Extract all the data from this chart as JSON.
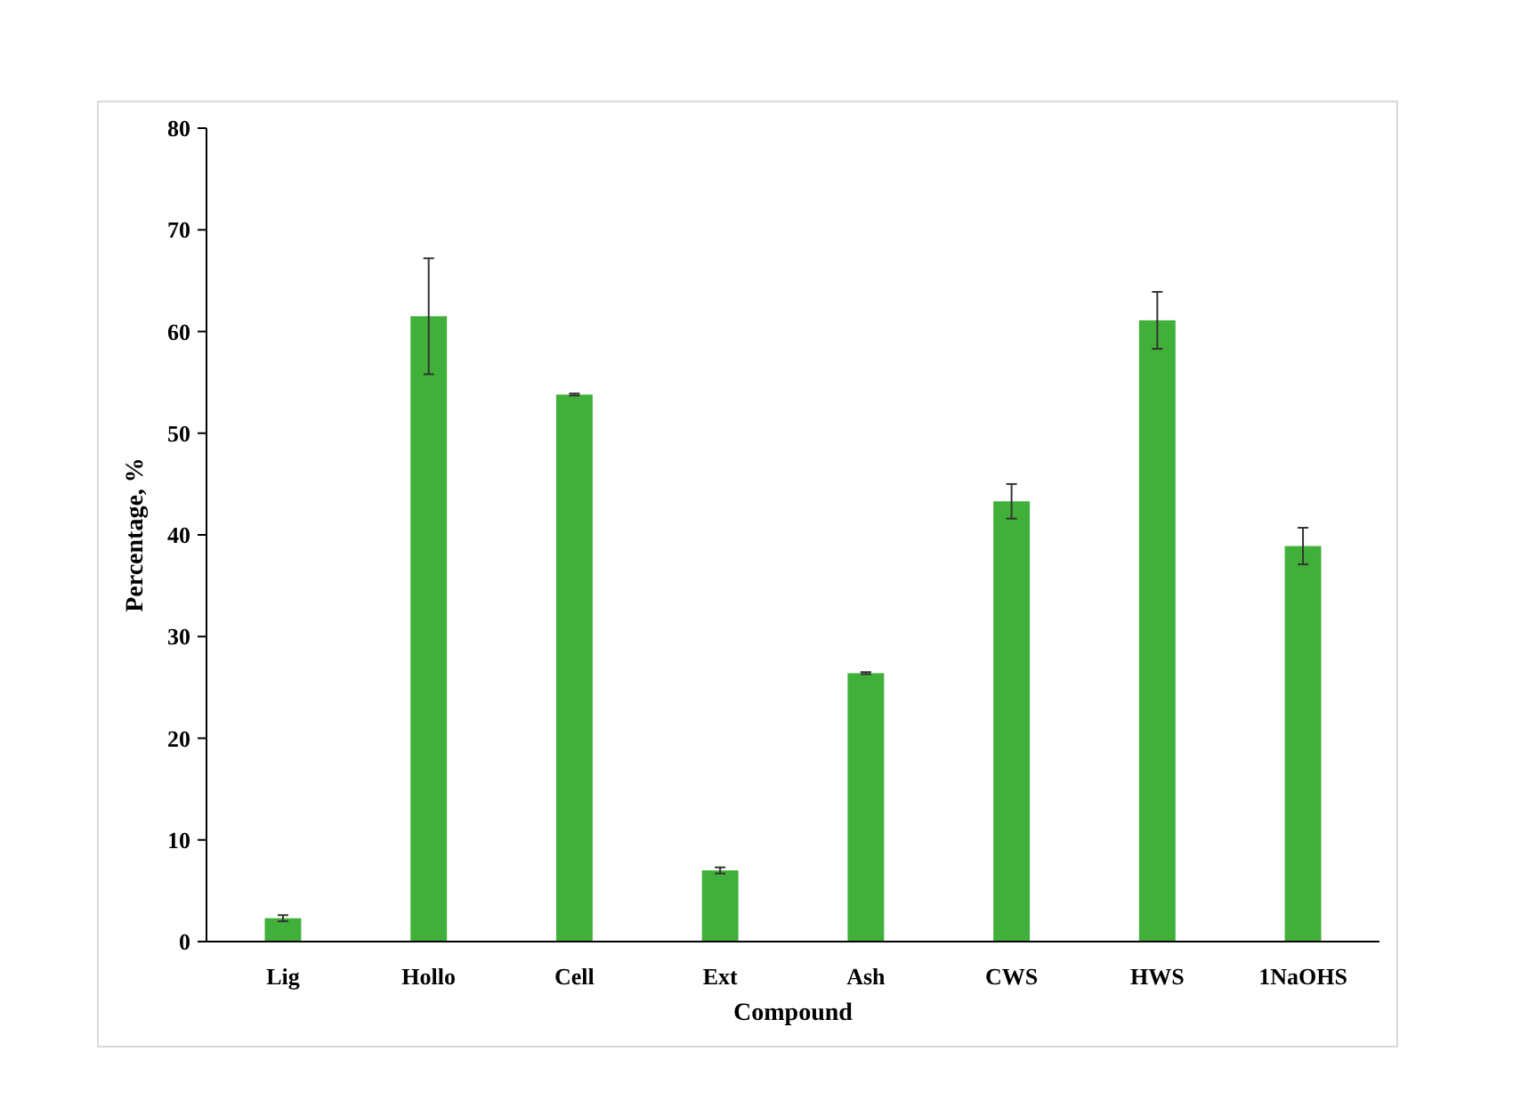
{
  "chart_data": {
    "type": "bar",
    "xlabel": "Compound",
    "ylabel": "Percentage, %",
    "categories": [
      "Lig",
      "Hollo",
      "Cell",
      "Ext",
      "Ash",
      "CWS",
      "HWS",
      "1NaOHS"
    ],
    "values": [
      2.3,
      61.5,
      53.8,
      7.0,
      26.4,
      43.3,
      61.1,
      38.9
    ],
    "errors": [
      0.3,
      5.7,
      0.1,
      0.3,
      0.1,
      1.7,
      2.8,
      1.8
    ],
    "color": "#41b03a",
    "ylim": [
      0,
      80
    ],
    "yticks": [
      0,
      10,
      20,
      30,
      40,
      50,
      60,
      70,
      80
    ],
    "grid": false
  }
}
